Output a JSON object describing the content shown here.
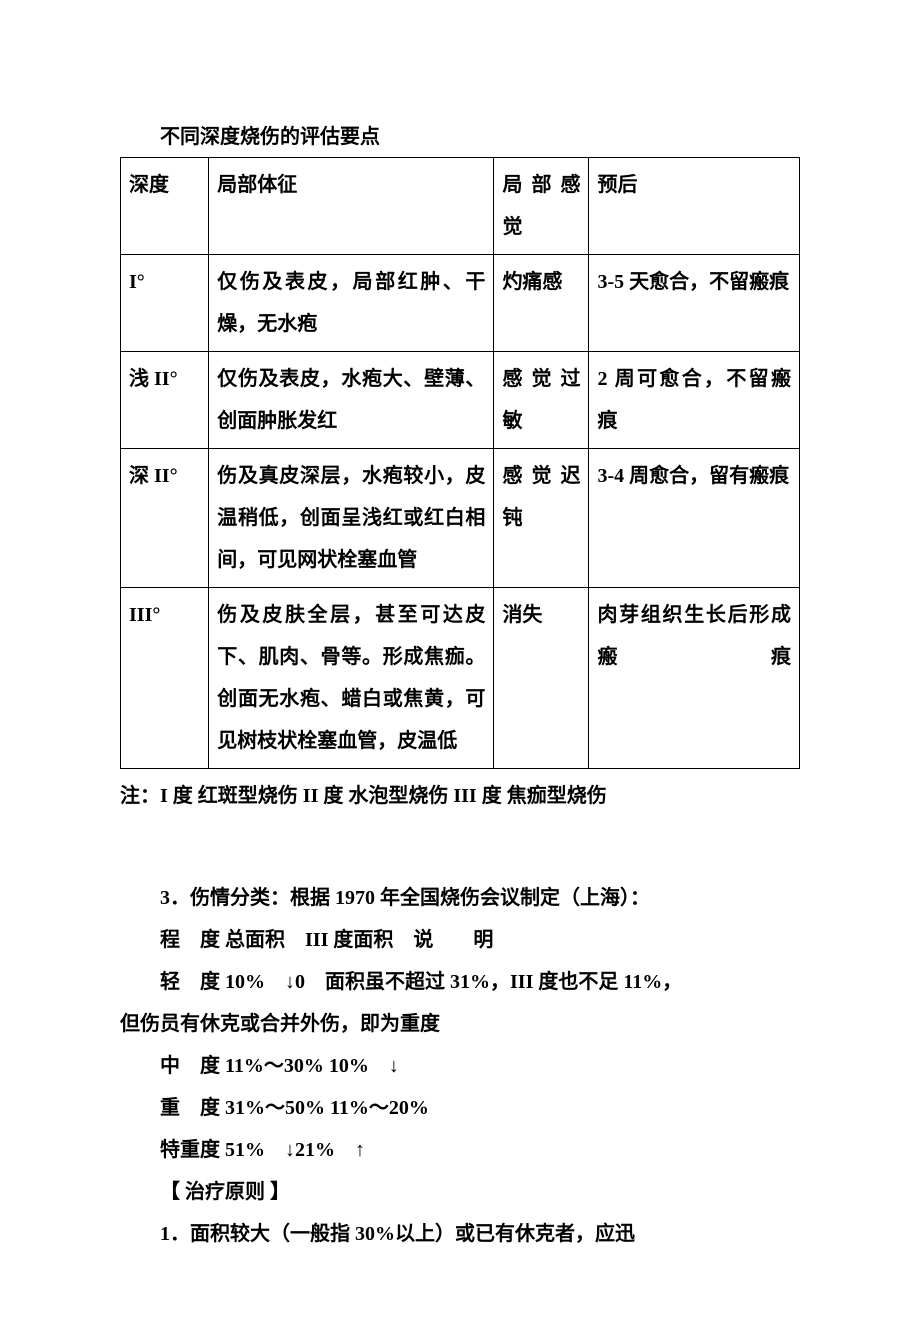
{
  "tableTitle": "不同深度烧伤的评估要点",
  "headers": {
    "depth": "深度",
    "signs": "局部体征",
    "sense": "局部感觉",
    "prognosis": "预后"
  },
  "rows": [
    {
      "depth": "I°",
      "signs": "仅伤及表皮，局部红肿、干燥，无水疱",
      "sense": "灼痛感",
      "prognosis": "3-5 天愈合，不留瘢痕"
    },
    {
      "depth": "浅 II°",
      "signs": "仅伤及表皮，水疱大、壁薄、创面肿胀发红",
      "sense": "感觉过敏",
      "prognosis": "2 周可愈合，不留瘢痕"
    },
    {
      "depth": "深 II°",
      "signs": "伤及真皮深层，水疱较小，皮温稍低，创面呈浅红或红白相间，可见网状栓塞血管",
      "sense": "感觉迟钝",
      "prognosis": "3-4 周愈合，留有瘢痕"
    },
    {
      "depth": "III°",
      "signs": "伤及皮肤全层，甚至可达皮下、肌肉、骨等。形成焦痂。创面无水疱、蜡白或焦黄，可见树枝状栓塞血管，皮温低",
      "sense": "消失",
      "prognosis": "肉芽组织生长后形成瘢痕"
    }
  ],
  "note": "注：I 度 红斑型烧伤  II 度 水泡型烧伤  III 度 焦痂型烧伤",
  "para1": "3．伤情分类：根据 1970 年全国烧伤会议制定（上海）：",
  "para2": "程　度 总面积　III 度面积　说　　明",
  "para3a": "轻　度 10%　↓0　面积虽不超过 31%，III 度也不足 11%，",
  "para3b": "但伤员有休克或合并外伤，即为重度",
  "para4": "中　度 11%～30% 10%　↓",
  "para5": "重　度 31%～50% 11%～20%",
  "para6": "特重度 51%　↓21%　↑",
  "para7": "【 治疗原则 】",
  "para8": "1．面积较大（一般指 30%以上）或已有休克者，应迅"
}
